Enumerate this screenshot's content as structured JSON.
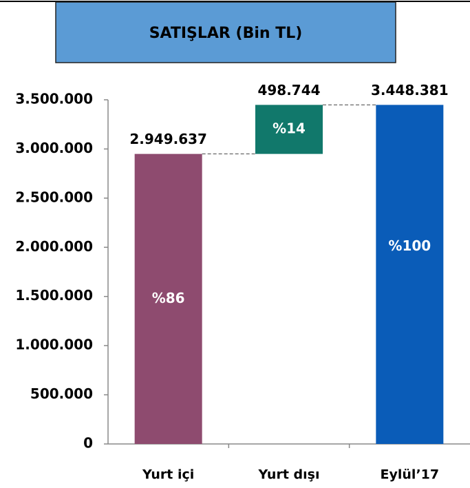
{
  "chart_data": {
    "type": "waterfall",
    "title": "SATIŞLAR (Bin TL)",
    "categories": [
      "Yurt içi",
      "Yurt dışı",
      "Eylül’17"
    ],
    "measure": [
      "absolute",
      "relative",
      "total"
    ],
    "values": [
      2949637,
      498744,
      3448381
    ],
    "value_labels": [
      "2.949.637",
      "498.744",
      "3.448.381"
    ],
    "inner_labels": [
      "%86",
      "%14",
      "%100"
    ],
    "colors": [
      "#8e4b6f",
      "#11786b",
      "#0a5cb8"
    ],
    "ylim": [
      0,
      3500000
    ],
    "yticks": [
      0,
      {
        "value": 500000,
        "label": "500.000"
      },
      {
        "value": 1000000,
        "label": "1.000.000"
      },
      {
        "value": 1500000,
        "label": "1.500.000"
      },
      {
        "value": 2000000,
        "label": "2.000.000"
      },
      {
        "value": 2500000,
        "label": "2.500.000"
      },
      {
        "value": 3000000,
        "label": "3.000.000"
      },
      {
        "value": 3500000,
        "label": "3.500.000"
      }
    ],
    "grid": false
  }
}
